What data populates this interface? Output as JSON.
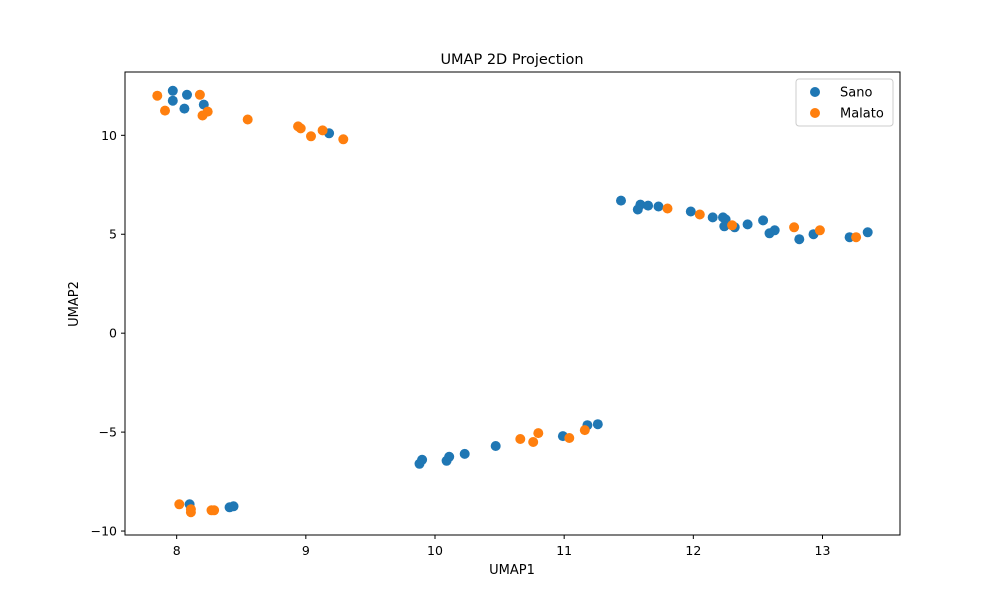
{
  "colors": {
    "Sano": "#1f77b4",
    "Malato": "#ff7f0e"
  },
  "chart_data": {
    "type": "scatter",
    "title": "UMAP 2D Projection",
    "xlabel": "UMAP1",
    "ylabel": "UMAP2",
    "xlim": [
      7.6,
      13.6
    ],
    "ylim": [
      -10.2,
      13.2
    ],
    "xticks": [
      8,
      9,
      10,
      11,
      12,
      13
    ],
    "yticks": [
      -10,
      -5,
      0,
      5,
      10
    ],
    "xtick_labels": [
      "8",
      "9",
      "10",
      "11",
      "12",
      "13"
    ],
    "ytick_labels": [
      "−10",
      "−5",
      "0",
      "5",
      "10"
    ],
    "grid": false,
    "legend": {
      "position": "top-right",
      "entries": [
        "Sano",
        "Malato"
      ]
    },
    "series": [
      {
        "name": "Sano",
        "color": "#1f77b4",
        "points": [
          [
            7.97,
            12.25
          ],
          [
            8.08,
            12.05
          ],
          [
            7.97,
            11.75
          ],
          [
            8.21,
            11.55
          ],
          [
            8.06,
            11.35
          ],
          [
            9.18,
            10.1
          ],
          [
            11.44,
            6.7
          ],
          [
            11.59,
            6.5
          ],
          [
            11.65,
            6.45
          ],
          [
            11.73,
            6.4
          ],
          [
            11.57,
            6.25
          ],
          [
            11.98,
            6.15
          ],
          [
            12.15,
            5.85
          ],
          [
            12.23,
            5.85
          ],
          [
            12.25,
            5.75
          ],
          [
            12.24,
            5.4
          ],
          [
            12.32,
            5.35
          ],
          [
            12.42,
            5.5
          ],
          [
            12.54,
            5.7
          ],
          [
            12.63,
            5.2
          ],
          [
            12.59,
            5.05
          ],
          [
            12.82,
            4.75
          ],
          [
            12.93,
            5.0
          ],
          [
            13.21,
            4.85
          ],
          [
            13.35,
            5.1
          ],
          [
            9.88,
            -6.6
          ],
          [
            9.9,
            -6.4
          ],
          [
            10.09,
            -6.45
          ],
          [
            10.11,
            -6.25
          ],
          [
            10.23,
            -6.1
          ],
          [
            10.47,
            -5.7
          ],
          [
            10.99,
            -5.2
          ],
          [
            11.18,
            -4.65
          ],
          [
            11.26,
            -4.6
          ],
          [
            8.1,
            -8.65
          ],
          [
            8.41,
            -8.8
          ],
          [
            8.44,
            -8.75
          ]
        ]
      },
      {
        "name": "Malato",
        "color": "#ff7f0e",
        "points": [
          [
            7.85,
            12.0
          ],
          [
            8.18,
            12.05
          ],
          [
            7.91,
            11.25
          ],
          [
            8.24,
            11.2
          ],
          [
            8.2,
            11.0
          ],
          [
            8.55,
            10.8
          ],
          [
            8.94,
            10.45
          ],
          [
            8.96,
            10.35
          ],
          [
            9.13,
            10.25
          ],
          [
            9.04,
            9.95
          ],
          [
            9.29,
            9.8
          ],
          [
            11.8,
            6.3
          ],
          [
            12.05,
            6.0
          ],
          [
            12.3,
            5.45
          ],
          [
            12.78,
            5.35
          ],
          [
            12.98,
            5.2
          ],
          [
            13.26,
            4.85
          ],
          [
            10.66,
            -5.35
          ],
          [
            10.8,
            -5.05
          ],
          [
            10.76,
            -5.5
          ],
          [
            11.04,
            -5.3
          ],
          [
            11.16,
            -4.9
          ],
          [
            8.02,
            -8.65
          ],
          [
            8.11,
            -8.9
          ],
          [
            8.11,
            -9.05
          ],
          [
            8.27,
            -8.95
          ],
          [
            8.29,
            -8.95
          ]
        ]
      }
    ]
  }
}
